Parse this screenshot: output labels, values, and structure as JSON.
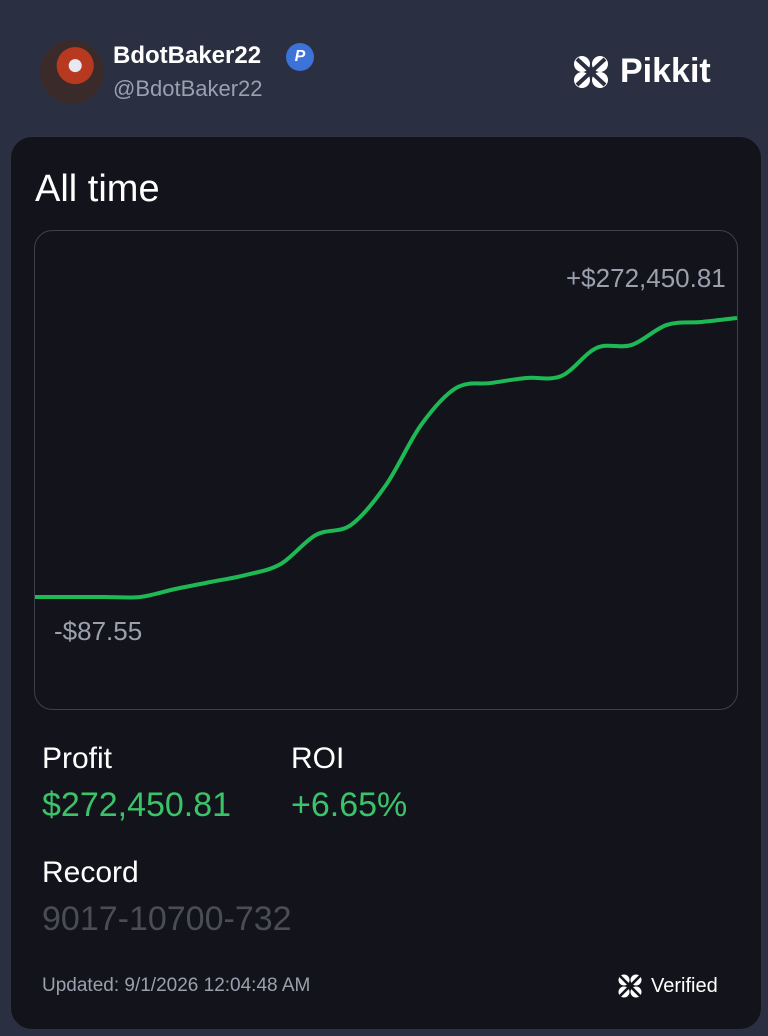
{
  "header": {
    "name": "BdotBaker22",
    "badge": "P",
    "handle": "@BdotBaker22",
    "brand": "Pikkit"
  },
  "card": {
    "title": "All time",
    "chart_data": {
      "type": "line",
      "max_label": "+$272,450.81",
      "min_label": "-$87.55",
      "color": "#1db954",
      "values": [
        -87.55,
        -87.55,
        -87.55,
        -87.55,
        7730,
        14570,
        21400,
        32150,
        60490,
        70260,
        109340,
        167960,
        204110,
        209000,
        213880,
        215840,
        243190,
        246120,
        265660,
        268590,
        272450.81
      ],
      "ylim": [
        -87.55,
        272450.81
      ]
    },
    "stats": {
      "profit_label": "Profit",
      "profit": "$272,450.81",
      "roi_label": "ROI",
      "roi": "+6.65%",
      "record_label": "Record",
      "record": "9017-10700-732"
    },
    "footer": {
      "updated": "Updated: 9/1/2026 12:04:48 AM",
      "verified": "Verified"
    }
  }
}
